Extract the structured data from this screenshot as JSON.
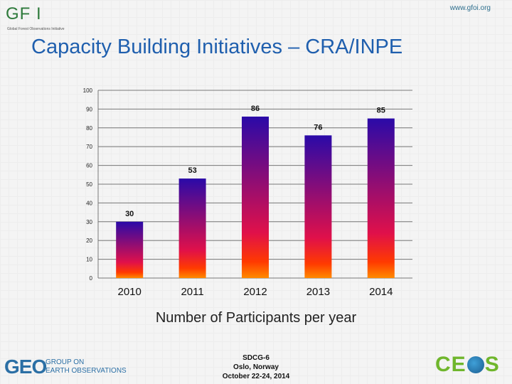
{
  "header": {
    "url": "www.gfoi.org",
    "logo_text": "GF I",
    "logo_subtitle": "Global Forest Observations Initiative",
    "title": "Capacity Building Initiatives – CRA/INPE"
  },
  "chart_data": {
    "type": "bar",
    "categories": [
      "2010",
      "2011",
      "2012",
      "2013",
      "2014"
    ],
    "values": [
      30,
      53,
      86,
      76,
      85
    ],
    "data_labels": [
      "30",
      "53",
      "86",
      "76",
      "85"
    ],
    "title": "",
    "xlabel": "Number of Participants per year",
    "ylabel": "",
    "ylim": [
      0,
      100
    ],
    "yticks": [
      "0",
      "10",
      "20",
      "30",
      "40",
      "50",
      "60",
      "70",
      "80",
      "90",
      "100"
    ],
    "grid": true,
    "bar_gradient": [
      "#2a0aa8",
      "#e0104a",
      "#ff3a00",
      "#ff8a00"
    ]
  },
  "footer": {
    "geo_mark": "GEO",
    "geo_line1": "GROUP ON",
    "geo_line2": "EARTH OBSERVATIONS",
    "event_line1": "SDCG-6",
    "event_line2": "Oslo, Norway",
    "event_line3": "October 22-24, 2014",
    "ceos_left": "CE",
    "ceos_right": "S"
  }
}
